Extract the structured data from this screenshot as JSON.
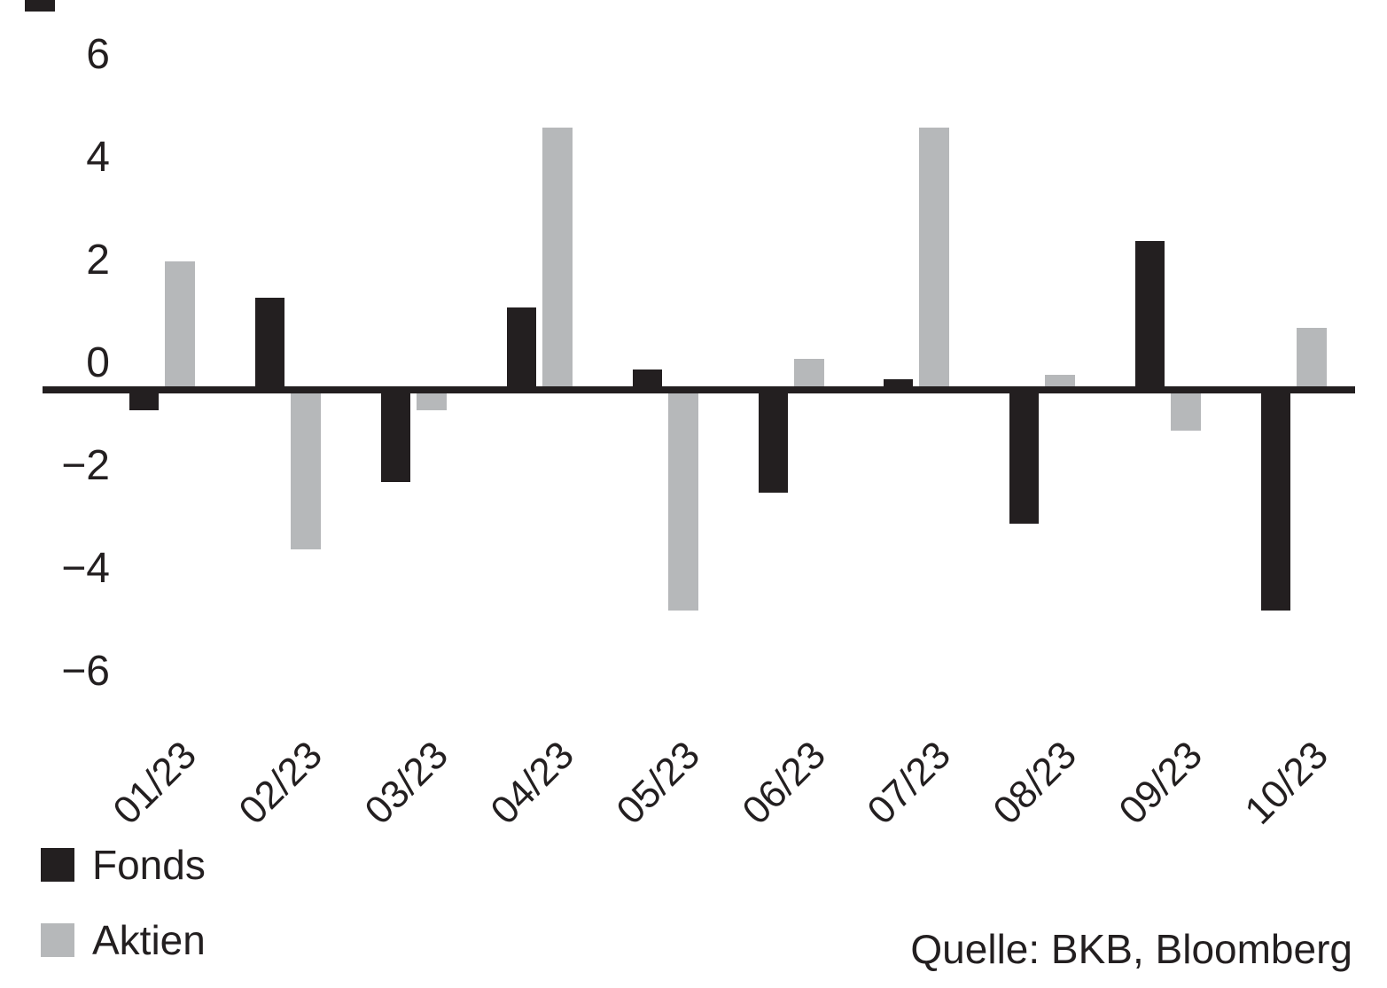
{
  "chart_data": {
    "type": "bar",
    "title": "",
    "xlabel": "",
    "ylabel": "",
    "categories": [
      "01/23",
      "02/23",
      "03/23",
      "04/23",
      "05/23",
      "06/23",
      "07/23",
      "08/23",
      "09/23",
      "10/23"
    ],
    "series": [
      {
        "name": "Fonds",
        "color": "#231f20",
        "values": [
          -0.4,
          1.8,
          -1.8,
          1.6,
          0.4,
          -2.0,
          0.2,
          -2.6,
          2.9,
          -4.3
        ]
      },
      {
        "name": "Aktien",
        "color": "#b6b8ba",
        "values": [
          2.5,
          -3.1,
          -0.4,
          5.1,
          -4.3,
          0.6,
          5.1,
          0.3,
          -0.8,
          1.2
        ]
      }
    ],
    "ylim": [
      -6,
      6
    ],
    "y_ticks": [
      6,
      4,
      2,
      0,
      -2,
      -4,
      -6
    ],
    "y_tick_labels": [
      "6",
      "4",
      "2",
      "0",
      "−2",
      "−4",
      "−6"
    ],
    "grid": false,
    "legend_position": "bottom-left",
    "zero_line_color": "#231f20"
  },
  "legend": {
    "items": [
      {
        "label": "Fonds"
      },
      {
        "label": "Aktien"
      }
    ]
  },
  "source": {
    "text": "Quelle: BKB, Bloomberg"
  },
  "colors": {
    "fonds": "#231f20",
    "aktien": "#b6b8ba",
    "text": "#231f20",
    "background": "#ffffff"
  }
}
